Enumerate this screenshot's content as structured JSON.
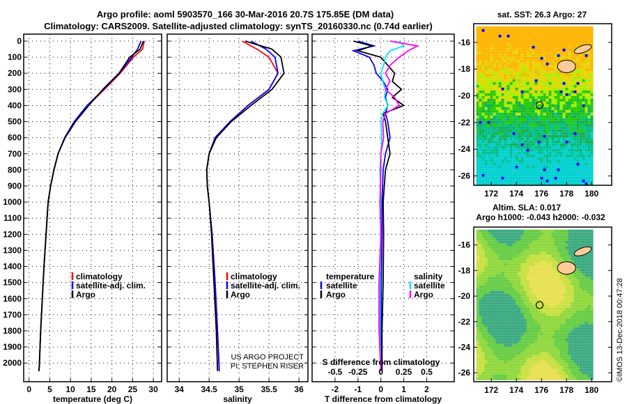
{
  "title_line1": "Argo profile: aoml 5903570_166 30-Mar-2016 20.7S 175.85E (DM data)",
  "title_line2": "Climatology: CARS2009. Satellite-adjusted climatology: synTS_20160330.nc (0.74d earlier)",
  "credit1": "US ARGO PROJECT",
  "credit2": "PI: STEPHEN RISER",
  "copyright": "©IMOS 13-Dec-2018 00:47:28",
  "colors": {
    "climatology": "#ff0000",
    "satellite": "#0000ff",
    "argo": "#000000",
    "sal_satellite": "#00e5ee",
    "sal_argo": "#ff00ff"
  },
  "chart_data": [
    {
      "type": "line",
      "id": "temperature",
      "xlabel": "temperature (deg C)",
      "ylabel": "depth",
      "xlim": [
        -1.3,
        32
      ],
      "ylim": [
        2115,
        -45
      ],
      "xticks": [
        0,
        5,
        10,
        15,
        20,
        25,
        30
      ],
      "yticks": [
        0,
        100,
        200,
        300,
        400,
        500,
        600,
        700,
        800,
        900,
        1000,
        1100,
        1200,
        1300,
        1400,
        1500,
        1600,
        1700,
        1800,
        1900,
        2000
      ],
      "legend": [
        "climatology",
        "satellite-adj. clim.",
        "Argo"
      ],
      "depth": [
        0,
        50,
        100,
        200,
        300,
        400,
        500,
        600,
        700,
        800,
        900,
        1000,
        1200,
        1400,
        1600,
        1800,
        2000,
        2050
      ],
      "series": [
        {
          "name": "climatology",
          "values": [
            27.8,
            27.4,
            25.2,
            22.0,
            18.2,
            14.2,
            11.0,
            8.6,
            7.0,
            6.0,
            5.2,
            4.6,
            4.1,
            3.6,
            3.2,
            2.8,
            2.5,
            2.4
          ]
        },
        {
          "name": "satellite-adj. clim.",
          "values": [
            27.0,
            26.2,
            24.8,
            21.8,
            18.0,
            14.0,
            10.9,
            8.6,
            7.0,
            6.0,
            5.2,
            4.6,
            4.1,
            3.6,
            3.2,
            2.8,
            2.5,
            2.4
          ]
        },
        {
          "name": "Argo",
          "values": [
            27.6,
            26.8,
            24.3,
            21.7,
            17.8,
            14.4,
            11.2,
            8.7,
            7.0,
            6.0,
            5.2,
            4.6,
            4.1,
            3.6,
            3.2,
            2.8,
            2.5,
            2.4
          ]
        }
      ]
    },
    {
      "type": "line",
      "id": "salinity",
      "xlabel": "salinity",
      "xlim": [
        33.8,
        36.15
      ],
      "ylim": [
        2115,
        -45
      ],
      "xticks": [
        34,
        34.5,
        35,
        35.5,
        36
      ],
      "xticklabels": [
        "34",
        "34.5",
        "35",
        "35.5",
        "36"
      ],
      "legend": [
        "climatology",
        "satellite-adj. clim.",
        "Argo"
      ],
      "depth": [
        0,
        50,
        100,
        200,
        300,
        400,
        500,
        600,
        700,
        800,
        900,
        1000,
        1200,
        1500,
        1800,
        2050
      ],
      "series": [
        {
          "name": "climatology",
          "values": [
            35.05,
            35.3,
            35.5,
            35.65,
            35.5,
            35.15,
            34.85,
            34.6,
            34.5,
            34.46,
            34.47,
            34.5,
            34.55,
            34.6,
            34.64,
            34.67
          ]
        },
        {
          "name": "satellite-adj. clim.",
          "values": [
            35.2,
            35.45,
            35.6,
            35.65,
            35.5,
            35.15,
            34.85,
            34.6,
            34.5,
            34.46,
            34.47,
            34.5,
            34.55,
            34.6,
            34.64,
            34.67
          ]
        },
        {
          "name": "Argo",
          "values": [
            35.1,
            35.55,
            35.7,
            35.75,
            35.55,
            35.2,
            34.87,
            34.62,
            34.5,
            34.46,
            34.47,
            34.5,
            34.54,
            34.58,
            34.62,
            34.64
          ]
        }
      ]
    },
    {
      "type": "line",
      "id": "differences",
      "xlabel": "T difference from climatology",
      "x2label": "S difference from climatology",
      "xlim": [
        -3,
        3.2
      ],
      "ylim": [
        2115,
        -45
      ],
      "xticks": [
        -2,
        -1,
        0,
        1,
        2
      ],
      "x2ticks": [
        -0.5,
        -0.25,
        0,
        0.25,
        0.5
      ],
      "x2ticklabels": [
        "-0.5",
        "-0.25",
        "0",
        "0.25",
        "0.5"
      ],
      "legend_temperature": {
        "title": "temperature",
        "items": [
          "satellite",
          "Argo"
        ]
      },
      "legend_salinity": {
        "title": "salinity",
        "items": [
          "satellite",
          "Argo"
        ]
      },
      "depth": [
        0,
        30,
        60,
        100,
        150,
        200,
        250,
        300,
        350,
        400,
        450,
        500,
        600,
        700,
        800,
        1000,
        1200,
        1500,
        1800,
        2050
      ],
      "series": [
        {
          "name": "T satellite",
          "values": [
            -1.0,
            -0.3,
            -1.2,
            -0.5,
            -0.3,
            -0.2,
            0.1,
            0.3,
            0.2,
            0.3,
            0.2,
            0.3,
            0.4,
            0.2,
            0.1,
            0.05,
            0.05,
            0.02,
            0.01,
            0.0
          ]
        },
        {
          "name": "T Argo",
          "values": [
            -1.2,
            -0.4,
            -1.0,
            0.0,
            0.3,
            0.6,
            0.5,
            0.9,
            0.5,
            1.0,
            0.1,
            0.2,
            0.3,
            0.4,
            0.2,
            0.1,
            0.12,
            0.1,
            0.05,
            0.05
          ]
        },
        {
          "name": "S satellite",
          "values": [
            0.2,
            0.25,
            0.1,
            0.05,
            0.03,
            0.0,
            0.02,
            0.05,
            0.04,
            0.08,
            0.02,
            0.0,
            0.01,
            0.0,
            -0.01,
            0.0,
            0.0,
            -0.01,
            -0.01,
            0.0
          ]
        },
        {
          "name": "S Argo",
          "values": [
            0.1,
            0.4,
            0.3,
            0.2,
            0.1,
            0.05,
            0.1,
            0.05,
            0.15,
            0.2,
            0.05,
            0.02,
            0.03,
            0.0,
            0.0,
            -0.01,
            0.0,
            -0.02,
            -0.02,
            0.0
          ]
        }
      ]
    },
    {
      "type": "heatmap",
      "id": "sst_map",
      "title": "sat. SST: 26.3 Argo: 27",
      "xticks": [
        172,
        174,
        176,
        178,
        180
      ],
      "yticks": [
        -16,
        -18,
        -20,
        -22,
        -24,
        -26
      ],
      "xlim": [
        170.6,
        181.6
      ],
      "ylim": [
        -26.7,
        -14.6
      ],
      "profile_location": [
        175.85,
        -20.7
      ]
    },
    {
      "type": "heatmap",
      "id": "sla_map",
      "title": "Altim. SLA: 0.017",
      "subtitle": "Argo h1000: -0.043 h2000: -0.032",
      "xticks": [
        172,
        174,
        176,
        178,
        180
      ],
      "yticks": [
        -16,
        -18,
        -20,
        -22,
        -24,
        -26
      ],
      "xlim": [
        170.6,
        181.6
      ],
      "ylim": [
        -26.7,
        -14.6
      ],
      "profile_location": [
        175.85,
        -20.7
      ]
    }
  ]
}
